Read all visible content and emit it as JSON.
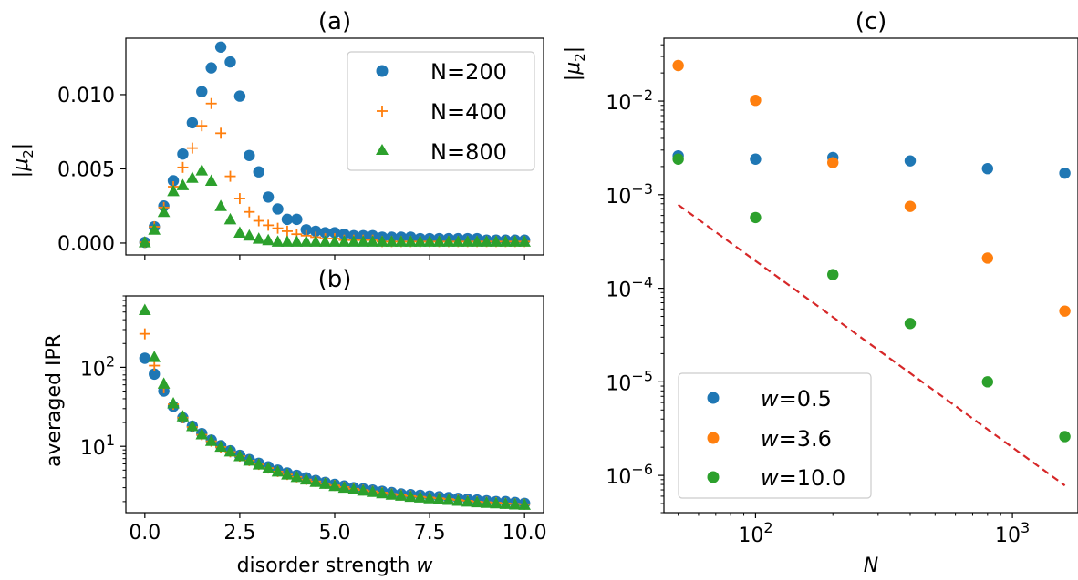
{
  "colors": {
    "blue": "#1f77b4",
    "orange": "#ff7f0e",
    "green": "#2ca02c",
    "red": "#d62728"
  },
  "chart_data": [
    {
      "id": "a",
      "type": "scatter",
      "title": "(a)",
      "xlabel": "",
      "ylabel": "|μ₂|",
      "xlim": [
        -0.5,
        10.5
      ],
      "ylim": [
        -0.0008,
        0.0138
      ],
      "yscale": "linear",
      "x_ticks": [
        0.0,
        2.5,
        5.0,
        7.5,
        10.0
      ],
      "x_tick_labels_visible": false,
      "y_ticks": [
        0.0,
        0.005,
        0.01
      ],
      "y_tick_labels": [
        "0.000",
        "0.005",
        "0.010"
      ],
      "legend": "top-right",
      "series": [
        {
          "name": "N=200",
          "marker": "circle",
          "color": "#1f77b4",
          "x": [
            0,
            0.25,
            0.5,
            0.75,
            1,
            1.25,
            1.5,
            1.75,
            2,
            2.25,
            2.5,
            2.75,
            3,
            3.25,
            3.5,
            3.75,
            4,
            4.25,
            4.5,
            4.75,
            5,
            5.25,
            5.5,
            5.75,
            6,
            6.25,
            6.5,
            6.75,
            7,
            7.25,
            7.5,
            7.75,
            8,
            8.25,
            8.5,
            8.75,
            9,
            9.25,
            9.5,
            9.75,
            10
          ],
          "y": [
            5e-05,
            0.0011,
            0.0025,
            0.0042,
            0.006,
            0.0081,
            0.0102,
            0.0118,
            0.0132,
            0.0122,
            0.0099,
            0.0059,
            0.0048,
            0.0031,
            0.0023,
            0.0016,
            0.0016,
            0.0009,
            0.0008,
            0.0007,
            0.0007,
            0.0006,
            0.0005,
            0.0005,
            0.0005,
            0.0004,
            0.0004,
            0.0004,
            0.0004,
            0.0003,
            0.0003,
            0.0003,
            0.0003,
            0.0003,
            0.0003,
            0.0003,
            0.0002,
            0.0002,
            0.0002,
            0.0002,
            0.0002
          ]
        },
        {
          "name": "N=400",
          "marker": "plus",
          "color": "#ff7f0e",
          "x": [
            0,
            0.25,
            0.5,
            0.75,
            1,
            1.25,
            1.5,
            1.75,
            2,
            2.25,
            2.5,
            2.75,
            3,
            3.25,
            3.5,
            3.75,
            4,
            4.25,
            4.5,
            4.75,
            5,
            5.25,
            5.5,
            5.75,
            6,
            6.25,
            6.5,
            6.75,
            7,
            7.25,
            7.5,
            7.75,
            8,
            8.25,
            8.5,
            8.75,
            9,
            9.25,
            9.5,
            9.75,
            10
          ],
          "y": [
            5e-05,
            0.0011,
            0.0024,
            0.0038,
            0.0051,
            0.0064,
            0.0079,
            0.0094,
            0.0074,
            0.0045,
            0.003,
            0.0021,
            0.0015,
            0.0012,
            0.001,
            0.0008,
            0.0006,
            0.0005,
            0.0004,
            0.0003,
            0.0003,
            0.0002,
            0.0002,
            0.0002,
            0.0002,
            0.0001,
            0.0001,
            0.0001,
            0.0001,
            0.0001,
            0.0001,
            0.0001,
            0.0001,
            0.0001,
            0.0001,
            0.0001,
            0.0001,
            0.0001,
            0.0001,
            0.0001,
            0.0001
          ]
        },
        {
          "name": "N=800",
          "marker": "triangle",
          "color": "#2ca02c",
          "x": [
            0,
            0.25,
            0.5,
            0.75,
            1,
            1.25,
            1.5,
            1.75,
            2,
            2.25,
            2.5,
            2.75,
            3,
            3.25,
            3.5,
            3.75,
            4,
            4.25,
            4.5,
            4.75,
            5,
            5.25,
            5.5,
            5.75,
            6,
            6.25,
            6.5,
            6.75,
            7,
            7.25,
            7.5,
            7.75,
            8,
            8.25,
            8.5,
            8.75,
            9,
            9.25,
            9.5,
            9.75,
            10
          ],
          "y": [
            5e-05,
            0.0009,
            0.0021,
            0.0035,
            0.0039,
            0.0044,
            0.0049,
            0.0042,
            0.0025,
            0.0016,
            0.0007,
            0.0005,
            0.0003,
            0.0002,
            0.0001,
            0.0001,
            0.0001,
            0.0001,
            0.0001,
            0.0001,
            0.0001,
            0.0001,
            0.0001,
            0.0001,
            0.0001,
            0.0001,
            0.0001,
            0.0001,
            0.0001,
            0.0001,
            0.0001,
            0.0001,
            0.0001,
            0.0001,
            0.0001,
            0.0001,
            0.0001,
            0.0001,
            0.0001,
            0.0001,
            0.0001
          ]
        }
      ]
    },
    {
      "id": "b",
      "type": "scatter",
      "title": "(b)",
      "xlabel": "disorder strength w",
      "ylabel": "averaged IPR",
      "xlim": [
        -0.5,
        10.5
      ],
      "ylim": [
        1.45,
        800
      ],
      "yscale": "log",
      "x_ticks": [
        0.0,
        2.5,
        5.0,
        7.5,
        10.0
      ],
      "x_tick_labels": [
        "0.0",
        "2.5",
        "5.0",
        "7.5",
        "10.0"
      ],
      "y_ticks": [
        10,
        100
      ],
      "y_tick_labels": [
        "10¹",
        "10²"
      ],
      "series": [
        {
          "name": "N=200",
          "marker": "circle",
          "color": "#1f77b4",
          "x": [
            0,
            0.25,
            0.5,
            0.75,
            1,
            1.25,
            1.5,
            1.75,
            2,
            2.25,
            2.5,
            2.75,
            3,
            3.25,
            3.5,
            3.75,
            4,
            4.25,
            4.5,
            4.75,
            5,
            5.25,
            5.5,
            5.75,
            6,
            6.25,
            6.5,
            6.75,
            7,
            7.25,
            7.5,
            7.75,
            8,
            8.25,
            8.5,
            8.75,
            9,
            9.25,
            9.5,
            9.75,
            10
          ],
          "y": [
            130,
            82,
            50,
            32,
            23,
            18,
            14.5,
            12,
            10.2,
            8.8,
            7.7,
            6.8,
            6.1,
            5.5,
            5.0,
            4.6,
            4.3,
            4.0,
            3.7,
            3.5,
            3.3,
            3.15,
            3.0,
            2.9,
            2.8,
            2.7,
            2.6,
            2.5,
            2.45,
            2.4,
            2.35,
            2.3,
            2.25,
            2.2,
            2.15,
            2.1,
            2.05,
            2.0,
            2.0,
            1.95,
            1.9
          ]
        },
        {
          "name": "N=400",
          "marker": "plus",
          "color": "#ff7f0e",
          "x": [
            0,
            0.25,
            0.5,
            0.75,
            1,
            1.25,
            1.5,
            1.75,
            2,
            2.25,
            2.5,
            2.75,
            3,
            3.25,
            3.5,
            3.75,
            4,
            4.25,
            4.5,
            4.75,
            5,
            5.25,
            5.5,
            5.75,
            6,
            6.25,
            6.5,
            6.75,
            7,
            7.25,
            7.5,
            7.75,
            8,
            8.25,
            8.5,
            8.75,
            9,
            9.25,
            9.5,
            9.75,
            10
          ],
          "y": [
            265,
            105,
            55,
            34,
            23,
            17.5,
            14,
            11.6,
            9.8,
            8.5,
            7.5,
            6.6,
            5.9,
            5.3,
            4.8,
            4.4,
            4.1,
            3.8,
            3.6,
            3.4,
            3.2,
            3.05,
            2.9,
            2.8,
            2.7,
            2.6,
            2.5,
            2.42,
            2.35,
            2.3,
            2.25,
            2.2,
            2.15,
            2.1,
            2.05,
            2.0,
            1.97,
            1.94,
            1.9,
            1.87,
            1.85
          ]
        },
        {
          "name": "N=800",
          "marker": "triangle",
          "color": "#2ca02c",
          "x": [
            0,
            0.25,
            0.5,
            0.75,
            1,
            1.25,
            1.5,
            1.75,
            2,
            2.25,
            2.5,
            2.75,
            3,
            3.25,
            3.5,
            3.75,
            4,
            4.25,
            4.5,
            4.75,
            5,
            5.25,
            5.5,
            5.75,
            6,
            6.25,
            6.5,
            6.75,
            7,
            7.25,
            7.5,
            7.75,
            8,
            8.25,
            8.5,
            8.75,
            9,
            9.25,
            9.5,
            9.75,
            10
          ],
          "y": [
            530,
            135,
            62,
            35,
            24,
            18,
            14.2,
            11.7,
            9.9,
            8.6,
            7.5,
            6.6,
            5.9,
            5.3,
            4.8,
            4.4,
            4.1,
            3.8,
            3.55,
            3.35,
            3.15,
            3.0,
            2.85,
            2.75,
            2.65,
            2.55,
            2.45,
            2.38,
            2.3,
            2.25,
            2.2,
            2.15,
            2.1,
            2.05,
            2.0,
            1.96,
            1.93,
            1.9,
            1.87,
            1.84,
            1.82
          ]
        }
      ]
    },
    {
      "id": "c",
      "type": "scatter",
      "title": "(c)",
      "xlabel": "N",
      "ylabel": "|μ₂|",
      "xscale": "log",
      "yscale": "log",
      "xlim": [
        44,
        1800
      ],
      "ylim": [
        4e-07,
        0.047
      ],
      "x_ticks": [
        100,
        1000
      ],
      "x_tick_labels": [
        "10²",
        "10³"
      ],
      "y_ticks": [
        1e-06,
        1e-05,
        0.0001,
        0.001,
        0.01
      ],
      "y_tick_labels": [
        "10⁻⁶",
        "10⁻⁵",
        "10⁻⁴",
        "10⁻³",
        "10⁻²"
      ],
      "legend": "bottom-left",
      "series": [
        {
          "name": "w=0.5",
          "marker": "circle",
          "color": "#1f77b4",
          "x": [
            50,
            100,
            200,
            400,
            800,
            1600
          ],
          "y": [
            0.0026,
            0.0024,
            0.0025,
            0.0023,
            0.0019,
            0.0017
          ]
        },
        {
          "name": "w=3.6",
          "marker": "circle",
          "color": "#ff7f0e",
          "x": [
            50,
            100,
            200,
            400,
            800,
            1600
          ],
          "y": [
            0.024,
            0.0102,
            0.0022,
            0.00075,
            0.00021,
            5.7e-05
          ]
        },
        {
          "name": "w=10.0",
          "marker": "circle",
          "color": "#2ca02c",
          "x": [
            50,
            100,
            200,
            400,
            800,
            1600
          ],
          "y": [
            0.0024,
            0.00057,
            0.00014,
            4.2e-05,
            1e-05,
            2.6e-06
          ]
        }
      ],
      "reference_line": {
        "style": "dashed",
        "color": "#d62728",
        "x": [
          50,
          1600
        ],
        "y": [
          0.00078,
          7.8e-07
        ]
      }
    }
  ]
}
